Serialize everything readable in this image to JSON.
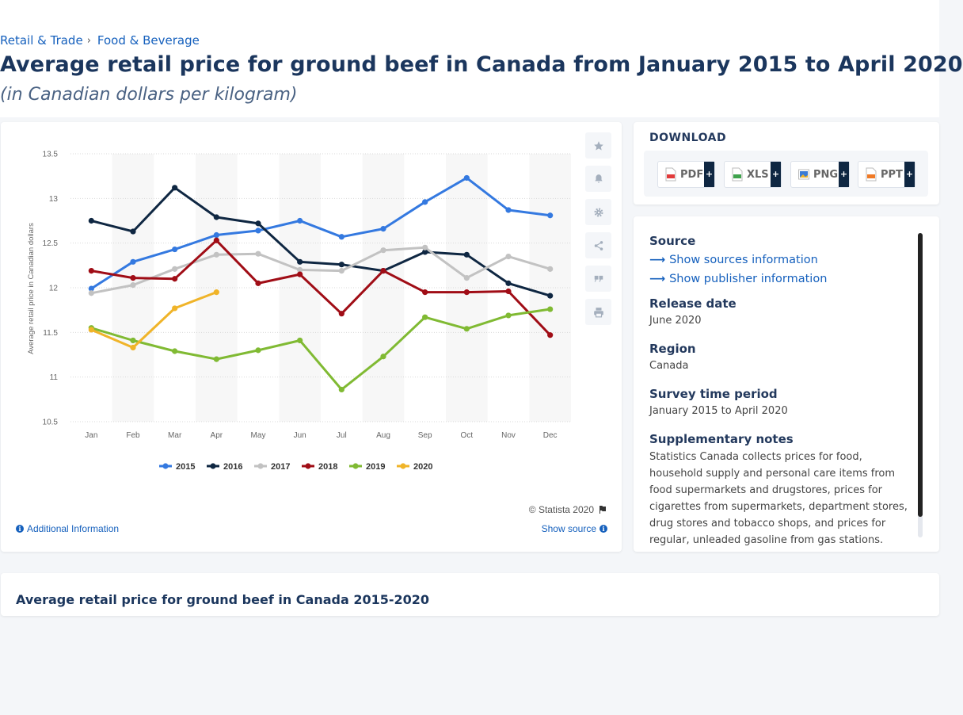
{
  "breadcrumb": {
    "items": [
      "Retail & Trade",
      "Food & Beverage"
    ],
    "separator": "›"
  },
  "title": "Average retail price for ground beef in Canada from January 2015 to April 2020",
  "subtitle": "(in Canadian dollars per kilogram)",
  "chart_data": {
    "type": "line",
    "title": "",
    "xlabel": "",
    "ylabel": "Average retail price in Canadian dollars",
    "ylim": [
      10.5,
      13.5
    ],
    "yticks": [
      10.5,
      11,
      11.5,
      12,
      12.5,
      13,
      13.5
    ],
    "ytick_labels": [
      "10.5",
      "11",
      "11.5",
      "12",
      "12.5",
      "13",
      "13.5"
    ],
    "categories": [
      "Jan",
      "Feb",
      "Mar",
      "Apr",
      "May",
      "Jun",
      "Jul",
      "Aug",
      "Sep",
      "Oct",
      "Nov",
      "Dec"
    ],
    "grid": true,
    "legend_position": "bottom",
    "series": [
      {
        "name": "2015",
        "color": "#3479e0",
        "values": [
          11.99,
          12.29,
          12.43,
          12.59,
          12.64,
          12.75,
          12.57,
          12.66,
          12.96,
          13.23,
          12.87,
          12.81
        ]
      },
      {
        "name": "2016",
        "color": "#0f2742",
        "values": [
          12.75,
          12.63,
          13.12,
          12.79,
          12.72,
          12.29,
          12.26,
          12.19,
          12.4,
          12.37,
          12.05,
          11.91
        ]
      },
      {
        "name": "2017",
        "color": "#c2c2c2",
        "values": [
          11.94,
          12.03,
          12.21,
          12.37,
          12.38,
          12.2,
          12.19,
          12.42,
          12.45,
          12.11,
          12.35,
          12.21
        ]
      },
      {
        "name": "2018",
        "color": "#a00d16",
        "values": [
          12.19,
          12.11,
          12.1,
          12.53,
          12.05,
          12.15,
          11.71,
          12.19,
          11.95,
          11.95,
          11.96,
          11.47
        ]
      },
      {
        "name": "2019",
        "color": "#80ba33",
        "values": [
          11.55,
          11.41,
          11.29,
          11.2,
          11.3,
          11.41,
          10.86,
          11.23,
          11.67,
          11.54,
          11.69,
          11.76
        ]
      },
      {
        "name": "2020",
        "color": "#f0b429",
        "values": [
          11.53,
          11.33,
          11.77,
          11.95,
          null,
          null,
          null,
          null,
          null,
          null,
          null,
          null
        ]
      }
    ]
  },
  "footer": {
    "copyright": "© Statista 2020",
    "additional_info": "Additional Information",
    "show_source": "Show source"
  },
  "download": {
    "title": "DOWNLOAD",
    "buttons": [
      {
        "label": "PDF",
        "color": "#e23b3b"
      },
      {
        "label": "XLS",
        "color": "#3fa34d"
      },
      {
        "label": "PNG",
        "color": "#3a7bd5"
      },
      {
        "label": "PPT",
        "color": "#f07a26"
      }
    ],
    "plus": "+"
  },
  "info": {
    "source_heading": "Source",
    "show_sources": "Show sources information",
    "show_publisher": "Show publisher information",
    "release_heading": "Release date",
    "release_value": "June 2020",
    "region_heading": "Region",
    "region_value": "Canada",
    "survey_heading": "Survey time period",
    "survey_value": "January 2015 to April 2020",
    "notes_heading": "Supplementary notes",
    "notes_value": "Statistics Canada collects prices for food, household supply and personal care items from food supermarkets and drugstores, prices for cigarettes from supermarkets, department stores, drug stores and tobacco shops, and prices for regular, unleaded gasoline from gas stations."
  },
  "bottom": {
    "title": "Average retail price for ground beef in Canada 2015-2020"
  },
  "icons": {
    "toolbar": [
      "star-icon",
      "bell-icon",
      "gear-icon",
      "share-icon",
      "quote-icon",
      "print-icon"
    ]
  }
}
